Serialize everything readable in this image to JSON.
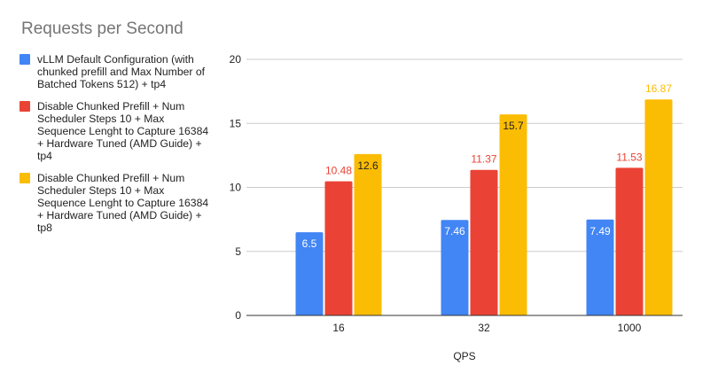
{
  "chart_data": {
    "type": "bar",
    "title": "Requests per Second",
    "xlabel": "QPS",
    "ylabel": "",
    "categories": [
      "16",
      "32",
      "1000"
    ],
    "ylim": [
      0,
      20
    ],
    "yticks": [
      "0",
      "5",
      "10",
      "15",
      "20"
    ],
    "grid": true,
    "legend_position": "left",
    "series": [
      {
        "name": "vLLM Default Configuration (with chunked prefill and Max Number of Batched Tokens 512) + tp4",
        "color": "#4285f4",
        "values": [
          6.5,
          7.46,
          7.49
        ],
        "labels": [
          "6.5",
          "7.46",
          "7.49"
        ]
      },
      {
        "name": "Disable Chunked Prefill + Num Scheduler Steps 10 + Max Sequence Lenght to Capture 16384 + Hardware Tuned (AMD Guide) + tp4",
        "color": "#ea4335",
        "values": [
          10.48,
          11.37,
          11.53
        ],
        "labels": [
          "10.48",
          "11.37",
          "11.53"
        ]
      },
      {
        "name": "Disable Chunked Prefill + Num Scheduler Steps 10 + Max Sequence Lenght to Capture 16384 + Hardware Tuned (AMD Guide) + tp8",
        "color": "#fbbc04",
        "values": [
          12.6,
          15.7,
          16.87
        ],
        "labels": [
          "12.6",
          "15.7",
          "16.87"
        ]
      }
    ]
  }
}
